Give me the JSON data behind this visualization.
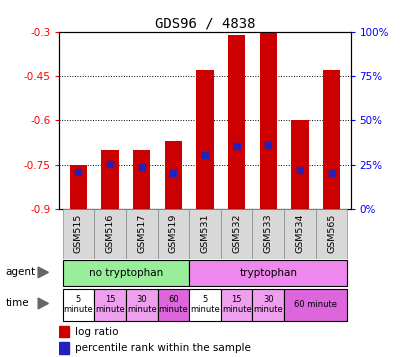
{
  "title": "GDS96 / 4838",
  "samples": [
    "GSM515",
    "GSM516",
    "GSM517",
    "GSM519",
    "GSM531",
    "GSM532",
    "GSM533",
    "GSM534",
    "GSM565"
  ],
  "log_ratio_top": [
    -0.75,
    -0.7,
    -0.7,
    -0.67,
    -0.43,
    -0.31,
    -0.3,
    -0.6,
    -0.43
  ],
  "log_ratio_bottom": [
    -0.9,
    -0.9,
    -0.9,
    -0.9,
    -0.9,
    -0.9,
    -0.9,
    -0.9,
    -0.9
  ],
  "percentile_rank": [
    -0.775,
    -0.748,
    -0.758,
    -0.778,
    -0.718,
    -0.688,
    -0.682,
    -0.768,
    -0.778
  ],
  "ylim_left": [
    -0.9,
    -0.3
  ],
  "yticks_left": [
    -0.9,
    -0.75,
    -0.6,
    -0.45,
    -0.3
  ],
  "yticks_right": [
    0,
    25,
    50,
    75,
    100
  ],
  "bar_color": "#CC0000",
  "dot_color": "#2222BB",
  "agent_row": [
    {
      "label": "no tryptophan",
      "start": 0,
      "end": 4,
      "color": "#99EE99"
    },
    {
      "label": "tryptophan",
      "start": 4,
      "end": 9,
      "color": "#EE88EE"
    }
  ],
  "time_row": [
    {
      "label": "5\nminute",
      "start": 0,
      "end": 1,
      "color": "#FFFFFF"
    },
    {
      "label": "15\nminute",
      "start": 1,
      "end": 2,
      "color": "#EEA0EE"
    },
    {
      "label": "30\nminute",
      "start": 2,
      "end": 3,
      "color": "#EEA0EE"
    },
    {
      "label": "60\nminute",
      "start": 3,
      "end": 4,
      "color": "#DD66DD"
    },
    {
      "label": "5\nminute",
      "start": 4,
      "end": 5,
      "color": "#FFFFFF"
    },
    {
      "label": "15\nminute",
      "start": 5,
      "end": 6,
      "color": "#EEA0EE"
    },
    {
      "label": "30\nminute",
      "start": 6,
      "end": 7,
      "color": "#EEA0EE"
    },
    {
      "label": "60 minute",
      "start": 7,
      "end": 9,
      "color": "#DD66DD"
    }
  ],
  "legend_log_ratio_color": "#CC0000",
  "legend_percentile_color": "#2222BB",
  "xlabel_agent": "agent",
  "xlabel_time": "time"
}
